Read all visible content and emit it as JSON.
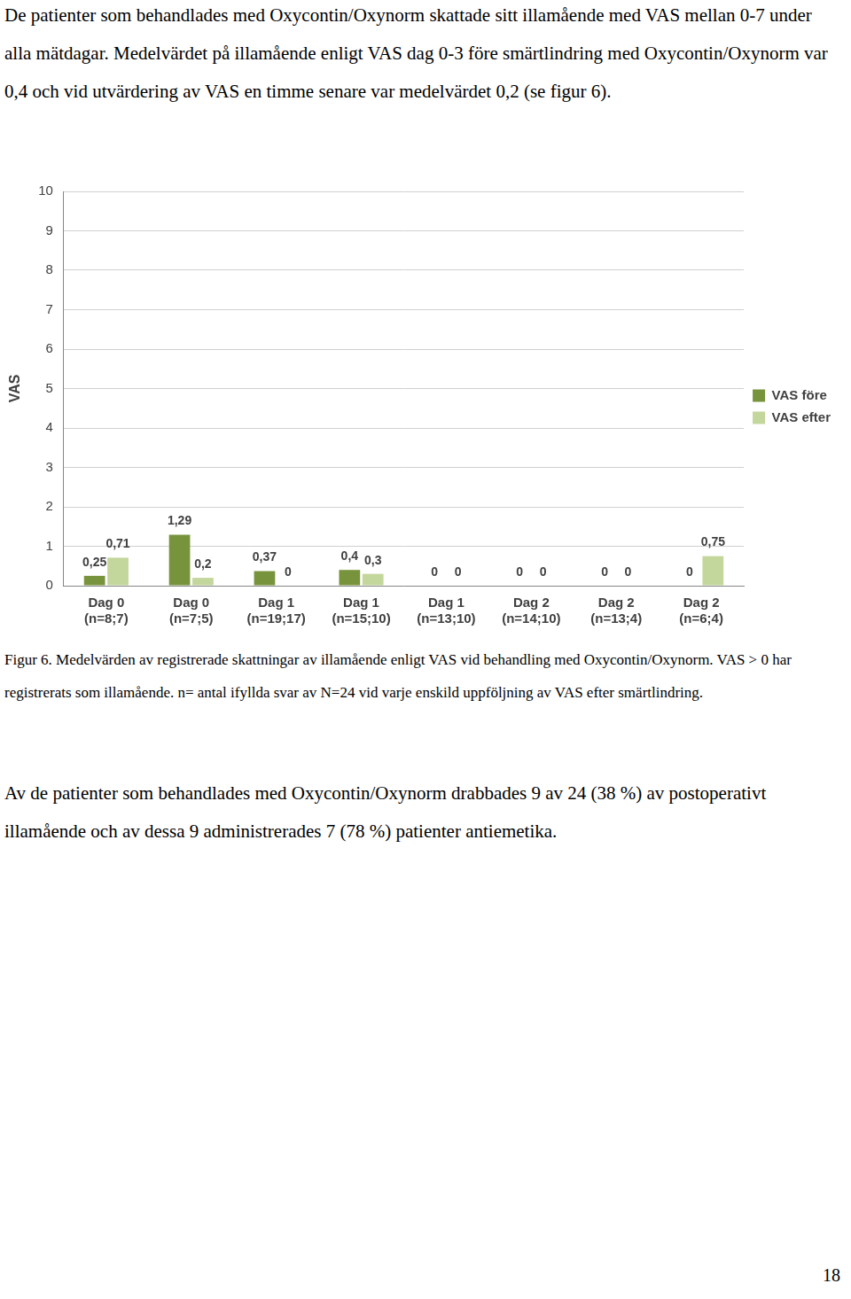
{
  "intro": "De patienter som behandlades med Oxycontin/Oxynorm skattade sitt illamående med VAS mellan 0-7 under alla mätdagar. Medelvärdet på illamående enligt VAS dag 0-3 före smärtlindring med Oxycontin/Oxynorm var 0,4 och vid utvärdering av VAS en timme senare var medelvärdet 0,2 (se figur 6).",
  "chart_data": {
    "type": "bar",
    "y_label": "VAS",
    "categories": [
      [
        "Dag 0",
        "(n=8;7)"
      ],
      [
        "Dag 0",
        "(n=7;5)"
      ],
      [
        "Dag 1",
        "(n=19;17)"
      ],
      [
        "Dag 1",
        "(n=15;10)"
      ],
      [
        "Dag 1",
        "(n=13;10)"
      ],
      [
        "Dag 2",
        "(n=14;10)"
      ],
      [
        "Dag 2",
        "(n=13;4)"
      ],
      [
        "Dag 2",
        "(n=6;4)"
      ]
    ],
    "series": [
      {
        "name": "VAS före",
        "color": "#77933c",
        "values": [
          0.25,
          1.29,
          0.37,
          0.4,
          0,
          0,
          0,
          0
        ],
        "value_labels": [
          "0,25",
          "1,29",
          "0,37",
          "0,4",
          "0",
          "0",
          "0",
          "0"
        ]
      },
      {
        "name": "VAS efter",
        "color": "#c3d69b",
        "values": [
          0.71,
          0.2,
          0,
          0.3,
          0,
          0,
          0,
          0.75
        ],
        "value_labels": [
          "0,71",
          "0,2",
          "0",
          "0,3",
          "0",
          "0",
          "0",
          "0,75"
        ]
      }
    ],
    "ylim": [
      0,
      10
    ],
    "yticks": [
      0,
      1,
      2,
      3,
      4,
      5,
      6,
      7,
      8,
      9,
      10
    ],
    "grid": true,
    "legend": "right",
    "data_labels": true
  },
  "caption": "Figur 6. Medelvärden av registrerade skattningar av illamående enligt VAS vid behandling med Oxycontin/Oxynorm. VAS > 0 har registrerats som illamående. n= antal ifyllda svar av N=24 vid varje enskild uppföljning av VAS efter smärtlindring.",
  "conclusion": "Av de patienter som behandlades med Oxycontin/Oxynorm drabbades 9 av 24 (38 %) av postoperativt illamående och av dessa 9 administrerades 7 (78 %) patienter antiemetika.",
  "page_number": "18"
}
